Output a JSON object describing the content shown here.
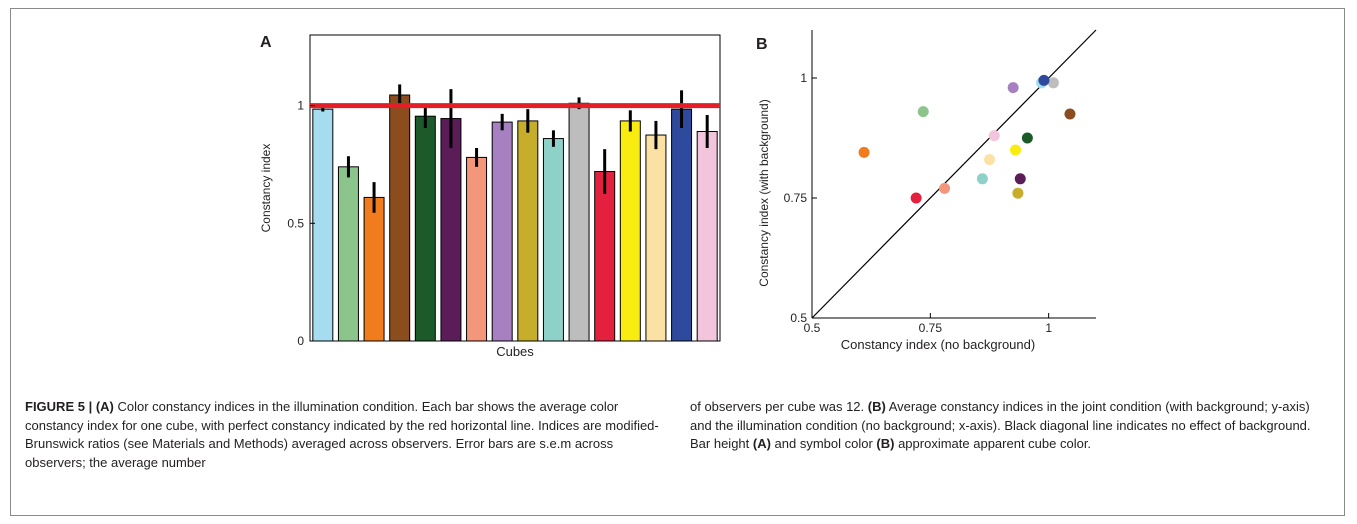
{
  "chart_data": [
    {
      "type": "bar",
      "panel_label": "A",
      "xlabel": "Cubes",
      "ylabel": "Constancy index",
      "ylim": [
        0,
        1.3
      ],
      "yticks": [
        "0",
        "0.5",
        "1"
      ],
      "reference_line": {
        "y": 1.0,
        "color": "#e41e26"
      },
      "grid": false,
      "values": [
        0.985,
        0.74,
        0.61,
        1.045,
        0.955,
        0.945,
        0.78,
        0.93,
        0.935,
        0.86,
        1.01,
        0.72,
        0.935,
        0.875,
        0.985,
        0.89
      ],
      "errors": [
        0.01,
        0.045,
        0.065,
        0.045,
        0.05,
        0.125,
        0.04,
        0.035,
        0.05,
        0.035,
        0.025,
        0.095,
        0.045,
        0.06,
        0.08,
        0.07
      ],
      "colors": [
        "#a5dcef",
        "#8cc58c",
        "#f07c1e",
        "#8b4d1d",
        "#1d5a2a",
        "#5a1d58",
        "#f3967a",
        "#a680c0",
        "#c6ae2a",
        "#8ed1c8",
        "#bdbdbd",
        "#e4203f",
        "#f8ec10",
        "#fce1a4",
        "#2d4a9c",
        "#f3c5dd"
      ]
    },
    {
      "type": "scatter",
      "panel_label": "B",
      "xlabel": "Constancy index (no background)",
      "ylabel": "Constancy index (with background)",
      "xlim": [
        0.5,
        1.1
      ],
      "ylim": [
        0.5,
        1.1
      ],
      "xticks": [
        "0.5",
        "0.75",
        "1"
      ],
      "yticks": [
        "0.5",
        "0.75",
        "1"
      ],
      "diagonal": true,
      "points": [
        {
          "x": 0.985,
          "y": 0.99,
          "color": "#a5dcef"
        },
        {
          "x": 0.735,
          "y": 0.93,
          "color": "#8cc58c"
        },
        {
          "x": 0.61,
          "y": 0.845,
          "color": "#f07c1e"
        },
        {
          "x": 1.045,
          "y": 0.925,
          "color": "#8b4d1d"
        },
        {
          "x": 0.955,
          "y": 0.875,
          "color": "#1d5a2a"
        },
        {
          "x": 0.94,
          "y": 0.79,
          "color": "#5a1d58"
        },
        {
          "x": 0.78,
          "y": 0.77,
          "color": "#f3967a"
        },
        {
          "x": 0.925,
          "y": 0.98,
          "color": "#a680c0"
        },
        {
          "x": 0.935,
          "y": 0.76,
          "color": "#c6ae2a"
        },
        {
          "x": 0.86,
          "y": 0.79,
          "color": "#8ed1c8"
        },
        {
          "x": 1.01,
          "y": 0.99,
          "color": "#bdbdbd"
        },
        {
          "x": 0.72,
          "y": 0.75,
          "color": "#e4203f"
        },
        {
          "x": 0.93,
          "y": 0.85,
          "color": "#f8ec10"
        },
        {
          "x": 0.875,
          "y": 0.83,
          "color": "#fce1a4"
        },
        {
          "x": 0.99,
          "y": 0.995,
          "color": "#2d4a9c"
        },
        {
          "x": 0.885,
          "y": 0.88,
          "color": "#f3c5dd"
        }
      ]
    }
  ],
  "caption": {
    "figure_label": "FIGURE 5 | (A)",
    "left_text_1": " Color constancy indices in the illumination condition. Each bar shows the average color constancy index for one cube, with perfect constancy indicated by the red horizontal line. Indices are modified-Brunswick ratios (see Materials and Methods) averaged across observers. Error bars are s.e.m across observers; the average number",
    "right_text_1": "of observers per cube was 12. ",
    "right_b_label": "(B)",
    "right_text_2": " Average constancy indices in the joint condition (with background; y-axis) and the illumination condition (no background; x-axis). Black diagonal line indicates no effect of background. Bar height ",
    "right_a_ref": "(A)",
    "right_text_3": " and symbol color ",
    "right_b_ref": "(B)",
    "right_text_4": " approximate apparent cube color."
  }
}
